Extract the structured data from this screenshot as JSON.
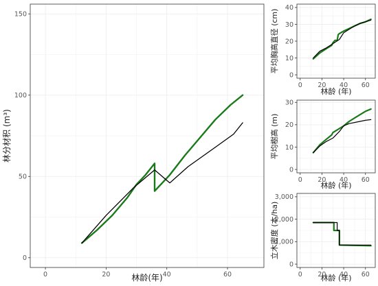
{
  "series_colors": {
    "observed": "#1a7a1a",
    "model": "#000000"
  },
  "chart_data": [
    {
      "id": "main",
      "type": "line",
      "xlabel": "林龄(年)",
      "ylabel": "林分材积 (m³)",
      "xlim": [
        -5,
        72
      ],
      "ylim": [
        -6,
        156
      ],
      "xticks": [
        0,
        20,
        40,
        60
      ],
      "yticks": [
        0,
        50,
        100,
        150
      ],
      "ytick_labels": [
        "0",
        "50",
        "100",
        "150"
      ],
      "grid": true,
      "series": [
        {
          "color": "#1a7a1a",
          "width": 2.4,
          "x": [
            12,
            17,
            22,
            27,
            30,
            33,
            36,
            36,
            41,
            46,
            51,
            56,
            61,
            65
          ],
          "y": [
            9,
            17,
            26,
            37,
            45,
            51,
            58,
            41,
            51,
            63,
            74,
            85,
            94,
            100
          ]
        },
        {
          "color": "#000000",
          "width": 1.3,
          "x": [
            12,
            20,
            29,
            36,
            41,
            47,
            56,
            62,
            65
          ],
          "y": [
            9,
            26,
            43,
            54,
            46,
            56,
            68,
            76,
            83
          ]
        }
      ]
    },
    {
      "id": "dbh",
      "type": "line",
      "xlabel": "林龄 (年)",
      "ylabel": "平均胸高直径 (cm)",
      "xlim": [
        -3,
        69
      ],
      "ylim": [
        -2,
        42
      ],
      "xticks": [
        0,
        20,
        40,
        60
      ],
      "yticks": [
        0,
        10,
        20,
        30,
        40
      ],
      "ytick_labels": [
        "0",
        "10",
        "20",
        "30",
        "40"
      ],
      "grid": true,
      "series": [
        {
          "color": "#1a7a1a",
          "width": 2.2,
          "x": [
            12,
            18,
            24,
            29,
            30,
            32,
            34,
            35,
            36,
            40,
            45,
            50,
            55,
            60,
            65
          ],
          "y": [
            9.5,
            13,
            15.5,
            17.5,
            19,
            20.5,
            20.5,
            24,
            24.5,
            26,
            27.5,
            29,
            30.5,
            31.5,
            33
          ]
        },
        {
          "color": "#000000",
          "width": 1.2,
          "x": [
            12,
            18,
            24,
            30,
            36,
            40,
            45,
            50,
            55,
            60,
            65
          ],
          "y": [
            10,
            14,
            16,
            18.5,
            21,
            25,
            27,
            29,
            30.5,
            31.5,
            32.5
          ]
        }
      ]
    },
    {
      "id": "height",
      "type": "line",
      "xlabel": "林龄 (年)",
      "ylabel": "平均樹高 (m)",
      "xlim": [
        -3,
        69
      ],
      "ylim": [
        -1.5,
        31
      ],
      "xticks": [
        0,
        20,
        40,
        60
      ],
      "yticks": [
        0,
        10,
        20,
        30
      ],
      "ytick_labels": [
        "0",
        "10",
        "20",
        "30"
      ],
      "grid": true,
      "series": [
        {
          "color": "#1a7a1a",
          "width": 2.2,
          "x": [
            12,
            18,
            24,
            29,
            30,
            35,
            40,
            45,
            50,
            55,
            60,
            65
          ],
          "y": [
            7.5,
            11,
            13.5,
            15.5,
            16.5,
            18,
            19.5,
            21.5,
            23,
            24.5,
            26,
            27
          ]
        },
        {
          "color": "#000000",
          "width": 1.2,
          "x": [
            12,
            18,
            24,
            30,
            36,
            40,
            45,
            50,
            55,
            60,
            65
          ],
          "y": [
            7.5,
            10.5,
            12.5,
            14,
            17,
            19.5,
            20.5,
            21,
            21.5,
            22,
            22.3
          ]
        }
      ]
    },
    {
      "id": "density",
      "type": "line",
      "xlabel": "林龄 (年)",
      "ylabel": "立木密度 (本/ha)",
      "xlim": [
        -3,
        69
      ],
      "ylim": [
        -150,
        3150
      ],
      "xticks": [
        0,
        20,
        40,
        60
      ],
      "yticks": [
        0,
        1000,
        2000,
        3000
      ],
      "ytick_labels": [
        "0",
        "1,000",
        "2,000",
        "3,000"
      ],
      "grid": true,
      "series": [
        {
          "color": "#1a7a1a",
          "width": 2.2,
          "x": [
            12,
            31,
            31,
            36,
            36,
            65
          ],
          "y": [
            1850,
            1850,
            1500,
            1500,
            850,
            820
          ]
        },
        {
          "color": "#000000",
          "width": 1.2,
          "x": [
            12,
            29,
            29,
            34,
            34,
            36,
            36,
            65
          ],
          "y": [
            1850,
            1850,
            1850,
            1850,
            1500,
            1500,
            850,
            850
          ]
        }
      ]
    }
  ]
}
